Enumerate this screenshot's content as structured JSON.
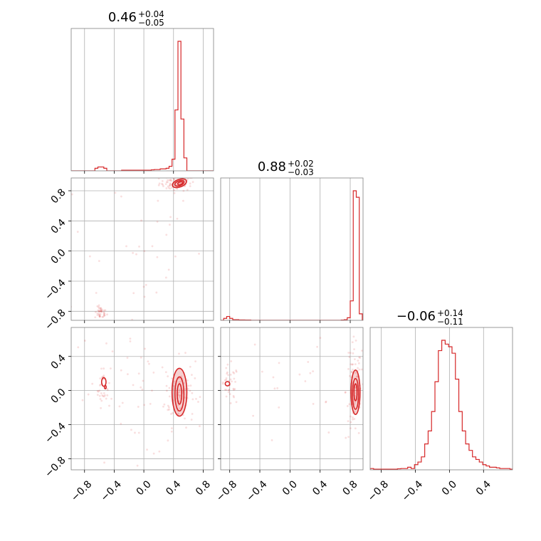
{
  "colors": {
    "series": "#d62728",
    "grid": "#b0b0b0",
    "frame": "#808080"
  },
  "chart_data": {
    "type": "corner",
    "panels": [
      {
        "id": "hist-0",
        "type": "histogram",
        "row": 0,
        "col": 0,
        "title": {
          "value": "0.46",
          "plus": "+0.04",
          "minus": "−0.05"
        },
        "xlim": [
          -0.98,
          0.94
        ],
        "grid_x": [
          -0.8,
          -0.4,
          0.0,
          0.4,
          0.8
        ],
        "bins": [
          [
            -0.98,
            0
          ],
          [
            -0.94,
            0
          ],
          [
            -0.9,
            0
          ],
          [
            -0.86,
            0
          ],
          [
            -0.82,
            0
          ],
          [
            -0.78,
            0
          ],
          [
            -0.74,
            0
          ],
          [
            -0.7,
            0
          ],
          [
            -0.66,
            0.02
          ],
          [
            -0.62,
            0.03
          ],
          [
            -0.58,
            0.03
          ],
          [
            -0.54,
            0.02
          ],
          [
            -0.5,
            0
          ],
          [
            -0.46,
            0
          ],
          [
            -0.42,
            0
          ],
          [
            -0.38,
            0
          ],
          [
            -0.34,
            0
          ],
          [
            -0.3,
            0.005
          ],
          [
            -0.26,
            0.005
          ],
          [
            -0.22,
            0.005
          ],
          [
            -0.18,
            0.005
          ],
          [
            -0.14,
            0.005
          ],
          [
            -0.1,
            0.005
          ],
          [
            -0.06,
            0.005
          ],
          [
            -0.02,
            0.005
          ],
          [
            0.02,
            0.005
          ],
          [
            0.06,
            0.005
          ],
          [
            0.1,
            0.008
          ],
          [
            0.14,
            0.01
          ],
          [
            0.18,
            0.01
          ],
          [
            0.22,
            0.015
          ],
          [
            0.26,
            0.015
          ],
          [
            0.3,
            0.02
          ],
          [
            0.34,
            0.035
          ],
          [
            0.38,
            0.09
          ],
          [
            0.42,
            0.47
          ],
          [
            0.46,
            1.0
          ],
          [
            0.5,
            0.4
          ],
          [
            0.54,
            0.1
          ],
          [
            0.58,
            0
          ],
          [
            0.62,
            0
          ],
          [
            0.66,
            0
          ],
          [
            0.7,
            0
          ],
          [
            0.74,
            0
          ],
          [
            0.78,
            0
          ],
          [
            0.82,
            0
          ],
          [
            0.86,
            0
          ],
          [
            0.9,
            0
          ]
        ]
      },
      {
        "id": "hist-1",
        "type": "histogram",
        "row": 1,
        "col": 1,
        "title": {
          "value": "0.88",
          "plus": "+0.02",
          "minus": "−0.03"
        },
        "xlim": [
          -0.92,
          0.97
        ],
        "grid_x": [
          -0.8,
          -0.4,
          0.0,
          0.4,
          0.8
        ],
        "bins": [
          [
            -0.92,
            0
          ],
          [
            -0.88,
            0.015
          ],
          [
            -0.84,
            0.03
          ],
          [
            -0.8,
            0.015
          ],
          [
            -0.76,
            0.005
          ],
          [
            -0.72,
            0.005
          ],
          [
            -0.68,
            0.003
          ],
          [
            -0.64,
            0.003
          ],
          [
            -0.6,
            0.002
          ],
          [
            -0.56,
            0.002
          ],
          [
            -0.52,
            0
          ],
          [
            -0.48,
            0
          ],
          [
            -0.44,
            0
          ],
          [
            -0.4,
            0
          ],
          [
            -0.36,
            0
          ],
          [
            -0.32,
            0
          ],
          [
            -0.28,
            0
          ],
          [
            -0.24,
            0
          ],
          [
            -0.2,
            0
          ],
          [
            -0.16,
            0
          ],
          [
            -0.12,
            0
          ],
          [
            -0.08,
            0
          ],
          [
            -0.04,
            0
          ],
          [
            0,
            0
          ],
          [
            0.04,
            0
          ],
          [
            0.08,
            0
          ],
          [
            0.12,
            0
          ],
          [
            0.16,
            0
          ],
          [
            0.2,
            0
          ],
          [
            0.24,
            0
          ],
          [
            0.28,
            0
          ],
          [
            0.32,
            0
          ],
          [
            0.36,
            0
          ],
          [
            0.4,
            0
          ],
          [
            0.44,
            0
          ],
          [
            0.48,
            0
          ],
          [
            0.52,
            0
          ],
          [
            0.56,
            0
          ],
          [
            0.6,
            0
          ],
          [
            0.64,
            0
          ],
          [
            0.68,
            0.002
          ],
          [
            0.72,
            0.005
          ],
          [
            0.76,
            0.02
          ],
          [
            0.8,
            0.15
          ],
          [
            0.84,
            1.0
          ],
          [
            0.88,
            0.95
          ],
          [
            0.92,
            0.05
          ]
        ]
      },
      {
        "id": "hist-2",
        "type": "histogram",
        "row": 2,
        "col": 2,
        "title": {
          "value": "−0.06",
          "plus": "+0.14",
          "minus": "−0.11"
        },
        "xlim": [
          -0.93,
          0.74
        ],
        "grid_x": [
          -0.8,
          -0.4,
          0.0,
          0.4
        ],
        "bins": [
          [
            -0.93,
            0.01
          ],
          [
            -0.89,
            0.005
          ],
          [
            -0.85,
            0.005
          ],
          [
            -0.81,
            0.005
          ],
          [
            -0.77,
            0.005
          ],
          [
            -0.73,
            0.005
          ],
          [
            -0.69,
            0.005
          ],
          [
            -0.65,
            0.005
          ],
          [
            -0.61,
            0.008
          ],
          [
            -0.57,
            0.01
          ],
          [
            -0.53,
            0.01
          ],
          [
            -0.49,
            0.02
          ],
          [
            -0.45,
            0.01
          ],
          [
            -0.41,
            0.04
          ],
          [
            -0.37,
            0.06
          ],
          [
            -0.33,
            0.1
          ],
          [
            -0.29,
            0.2
          ],
          [
            -0.25,
            0.3
          ],
          [
            -0.21,
            0.45
          ],
          [
            -0.17,
            0.68
          ],
          [
            -0.13,
            0.92
          ],
          [
            -0.09,
            1.0
          ],
          [
            -0.05,
            0.97
          ],
          [
            -0.01,
            0.95
          ],
          [
            0.03,
            0.9
          ],
          [
            0.07,
            0.7
          ],
          [
            0.11,
            0.45
          ],
          [
            0.15,
            0.3
          ],
          [
            0.19,
            0.2
          ],
          [
            0.23,
            0.15
          ],
          [
            0.27,
            0.1
          ],
          [
            0.31,
            0.08
          ],
          [
            0.35,
            0.06
          ],
          [
            0.39,
            0.04
          ],
          [
            0.43,
            0.03
          ],
          [
            0.47,
            0.02
          ],
          [
            0.51,
            0.02
          ],
          [
            0.55,
            0.015
          ],
          [
            0.59,
            0.01
          ],
          [
            0.63,
            0.01
          ],
          [
            0.67,
            0.01
          ],
          [
            0.71,
            0.005
          ]
        ]
      },
      {
        "id": "scatter-1-0",
        "type": "density",
        "row": 1,
        "col": 0,
        "xlim": [
          -0.98,
          0.94
        ],
        "ylim": [
          -0.92,
          0.97
        ],
        "grid_x": [
          -0.8,
          -0.4,
          0.0,
          0.4,
          0.8
        ],
        "grid_y": [
          -0.8,
          -0.4,
          0.0,
          0.4,
          0.8
        ],
        "contours": [
          {
            "cx": 0.48,
            "cy": 0.9,
            "rx": 0.1,
            "ry": 0.05,
            "rot": -20,
            "fill": true
          },
          {
            "cx": 0.48,
            "cy": 0.9,
            "rx": 0.065,
            "ry": 0.032,
            "rot": -20,
            "fill": false
          },
          {
            "cx": 0.49,
            "cy": 0.9,
            "rx": 0.035,
            "ry": 0.018,
            "rot": -20,
            "fill": false
          }
        ],
        "clusters": [
          {
            "cx": 0.45,
            "cy": 0.9,
            "sx": 0.12,
            "sy": 0.05,
            "n": 70
          },
          {
            "cx": -0.58,
            "cy": -0.82,
            "sx": 0.04,
            "sy": 0.04,
            "n": 40
          },
          {
            "cx": -0.2,
            "cy": 0.1,
            "sx": 0.5,
            "sy": 0.6,
            "n": 35
          }
        ]
      },
      {
        "id": "scatter-2-0",
        "type": "density",
        "row": 2,
        "col": 0,
        "xlim": [
          -0.98,
          0.94
        ],
        "ylim": [
          -0.93,
          0.74
        ],
        "grid_x": [
          -0.8,
          -0.4,
          0.0,
          0.4,
          0.8
        ],
        "grid_y": [
          -0.8,
          -0.4,
          0.0,
          0.4
        ],
        "contours": [
          {
            "cx": 0.48,
            "cy": -0.02,
            "rx": 0.1,
            "ry": 0.28,
            "rot": 0,
            "fill": true
          },
          {
            "cx": 0.48,
            "cy": -0.04,
            "rx": 0.06,
            "ry": 0.2,
            "rot": 0,
            "fill": false
          },
          {
            "cx": 0.48,
            "cy": -0.04,
            "rx": 0.03,
            "ry": 0.12,
            "rot": 0,
            "fill": false
          },
          {
            "cx": -0.54,
            "cy": 0.1,
            "rx": 0.03,
            "ry": 0.05,
            "rot": 0,
            "fill": false
          },
          {
            "cx": -0.52,
            "cy": 0.04,
            "rx": 0.012,
            "ry": 0.02,
            "rot": 0,
            "fill": false
          }
        ],
        "clusters": [
          {
            "cx": 0.48,
            "cy": -0.02,
            "sx": 0.1,
            "sy": 0.2,
            "n": 80
          },
          {
            "cx": -0.55,
            "cy": 0.05,
            "sx": 0.05,
            "sy": 0.12,
            "n": 30
          },
          {
            "cx": -0.1,
            "cy": 0.0,
            "sx": 0.45,
            "sy": 0.4,
            "n": 60
          }
        ]
      },
      {
        "id": "scatter-2-1",
        "type": "density",
        "row": 2,
        "col": 1,
        "xlim": [
          -0.92,
          0.97
        ],
        "ylim": [
          -0.93,
          0.74
        ],
        "grid_x": [
          -0.8,
          -0.4,
          0.0,
          0.4,
          0.8
        ],
        "grid_y": [
          -0.8,
          -0.4,
          0.0,
          0.4
        ],
        "contours": [
          {
            "cx": 0.87,
            "cy": -0.02,
            "rx": 0.06,
            "ry": 0.26,
            "rot": 0,
            "fill": true
          },
          {
            "cx": 0.87,
            "cy": -0.04,
            "rx": 0.04,
            "ry": 0.18,
            "rot": 0,
            "fill": false
          },
          {
            "cx": 0.87,
            "cy": -0.02,
            "rx": 0.02,
            "ry": 0.1,
            "rot": 0,
            "fill": false
          },
          {
            "cx": -0.83,
            "cy": 0.08,
            "rx": 0.03,
            "ry": 0.025,
            "rot": 0,
            "fill": false
          }
        ],
        "clusters": [
          {
            "cx": 0.86,
            "cy": 0.0,
            "sx": 0.06,
            "sy": 0.3,
            "n": 90
          },
          {
            "cx": -0.8,
            "cy": 0.05,
            "sx": 0.06,
            "sy": 0.12,
            "n": 40
          },
          {
            "cx": 0.3,
            "cy": 0.1,
            "sx": 0.5,
            "sy": 0.4,
            "n": 25
          }
        ]
      }
    ],
    "x_ticks": [
      {
        "col": 0,
        "ticks": [
          [
            -0.8,
            "−0.8"
          ],
          [
            -0.4,
            "−0.4"
          ],
          [
            0.0,
            "0.0"
          ],
          [
            0.4,
            "0.4"
          ],
          [
            0.8,
            "0.8"
          ]
        ]
      },
      {
        "col": 1,
        "ticks": [
          [
            -0.8,
            "−0.8"
          ],
          [
            -0.4,
            "−0.4"
          ],
          [
            0.0,
            "0.0"
          ],
          [
            0.4,
            "0.4"
          ],
          [
            0.8,
            "0.8"
          ]
        ]
      },
      {
        "col": 2,
        "ticks": [
          [
            -0.8,
            "−0.8"
          ],
          [
            -0.4,
            "−0.4"
          ],
          [
            0.0,
            "0.0"
          ],
          [
            0.4,
            "0.4"
          ]
        ]
      }
    ],
    "y_ticks": [
      {
        "row": 1,
        "ticks": [
          [
            -0.8,
            "−0.8"
          ],
          [
            -0.4,
            "−0.4"
          ],
          [
            0.0,
            "0.0"
          ],
          [
            0.4,
            "0.4"
          ],
          [
            0.8,
            "0.8"
          ]
        ]
      },
      {
        "row": 2,
        "ticks": [
          [
            -0.8,
            "−0.8"
          ],
          [
            -0.4,
            "−0.4"
          ],
          [
            0.0,
            "0.0"
          ],
          [
            0.4,
            "0.4"
          ]
        ]
      }
    ]
  }
}
